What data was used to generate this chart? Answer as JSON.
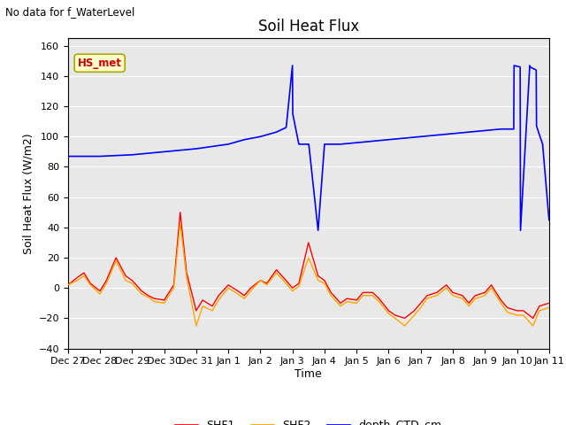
{
  "title": "Soil Heat Flux",
  "subtitle": "No data for f_WaterLevel",
  "xlabel": "Time",
  "ylabel": "Soil Heat Flux (W/m2)",
  "ylim": [
    -40,
    165
  ],
  "yticks": [
    -40,
    -20,
    0,
    20,
    40,
    60,
    80,
    100,
    120,
    140,
    160
  ],
  "bg_color": "#e8e8e8",
  "annotation_text": "HS_met",
  "annotation_bg": "#ffffcc",
  "annotation_border": "#aaaa00",
  "annotation_text_color": "#cc0000",
  "xtick_labels": [
    "Dec 27",
    "Dec 28",
    "Dec 29",
    "Dec 30",
    "Dec 31",
    "Jan 1",
    "Jan 2",
    "Jan 3",
    "Jan 4",
    "Jan 5",
    "Jan 6",
    "Jan 7",
    "Jan 8",
    "Jan 9",
    "Jan 10",
    "Jan 11"
  ],
  "shf1_x": [
    0,
    0.3,
    0.5,
    0.7,
    1.0,
    1.2,
    1.5,
    1.8,
    2.0,
    2.3,
    2.5,
    2.7,
    3.0,
    3.3,
    3.5,
    3.7,
    4.0,
    4.2,
    4.5,
    4.7,
    5.0,
    5.3,
    5.5,
    5.7,
    6.0,
    6.2,
    6.5,
    6.8,
    7.0,
    7.2,
    7.5,
    7.8,
    8.0,
    8.2,
    8.5,
    8.7,
    9.0,
    9.2,
    9.5,
    9.7,
    10.0,
    10.2,
    10.5,
    10.8,
    11.0,
    11.2,
    11.5,
    11.8,
    12.0,
    12.3,
    12.5,
    12.7,
    13.0,
    13.2,
    13.5,
    13.7,
    14.0,
    14.2,
    14.5,
    14.7,
    15.0
  ],
  "shf1_y": [
    2,
    7,
    10,
    3,
    -2,
    5,
    20,
    8,
    5,
    -2,
    -5,
    -7,
    -8,
    2,
    50,
    10,
    -15,
    -8,
    -12,
    -5,
    2,
    -2,
    -5,
    0,
    5,
    3,
    12,
    5,
    0,
    3,
    30,
    8,
    5,
    -3,
    -10,
    -7,
    -8,
    -3,
    -3,
    -7,
    -15,
    -18,
    -20,
    -15,
    -10,
    -5,
    -3,
    2,
    -3,
    -5,
    -10,
    -5,
    -3,
    2,
    -8,
    -13,
    -15,
    -15,
    -20,
    -12,
    -10
  ],
  "shf2_x": [
    0,
    0.3,
    0.5,
    0.7,
    1.0,
    1.2,
    1.5,
    1.8,
    2.0,
    2.3,
    2.5,
    2.7,
    3.0,
    3.3,
    3.5,
    3.7,
    4.0,
    4.2,
    4.5,
    4.7,
    5.0,
    5.3,
    5.5,
    5.7,
    6.0,
    6.2,
    6.5,
    6.8,
    7.0,
    7.2,
    7.5,
    7.8,
    8.0,
    8.2,
    8.5,
    8.7,
    9.0,
    9.2,
    9.5,
    9.7,
    10.0,
    10.2,
    10.5,
    10.8,
    11.0,
    11.2,
    11.5,
    11.8,
    12.0,
    12.3,
    12.5,
    12.7,
    13.0,
    13.2,
    13.5,
    13.7,
    14.0,
    14.2,
    14.5,
    14.7,
    15.0
  ],
  "shf2_y": [
    2,
    5,
    8,
    2,
    -4,
    3,
    18,
    5,
    3,
    -4,
    -6,
    -9,
    -10,
    0,
    43,
    7,
    -25,
    -12,
    -15,
    -8,
    0,
    -4,
    -7,
    -2,
    5,
    2,
    10,
    3,
    -2,
    1,
    20,
    5,
    3,
    -5,
    -12,
    -9,
    -10,
    -5,
    -5,
    -9,
    -17,
    -20,
    -25,
    -18,
    -13,
    -7,
    -5,
    0,
    -5,
    -7,
    -12,
    -7,
    -5,
    0,
    -10,
    -16,
    -18,
    -18,
    -25,
    -15,
    -13
  ],
  "depth_x": [
    0.0,
    1.0,
    2.0,
    3.0,
    4.0,
    5.0,
    5.5,
    6.0,
    6.5,
    6.8,
    6.81,
    7.0,
    7.01,
    7.2,
    7.5,
    7.51,
    7.8,
    8.0,
    8.5,
    9.0,
    9.5,
    10.0,
    10.5,
    11.0,
    11.5,
    12.0,
    12.5,
    13.0,
    13.5,
    13.9,
    13.91,
    14.1,
    14.11,
    14.4,
    14.41,
    14.6,
    14.61,
    14.8,
    15.0
  ],
  "depth_y": [
    87,
    87,
    88,
    90,
    92,
    95,
    98,
    100,
    103,
    106,
    107,
    147,
    115,
    95,
    95,
    95,
    38,
    95,
    95,
    96,
    97,
    98,
    99,
    100,
    101,
    102,
    103,
    104,
    105,
    105,
    147,
    146,
    38,
    147,
    146,
    144,
    107,
    95,
    45
  ]
}
